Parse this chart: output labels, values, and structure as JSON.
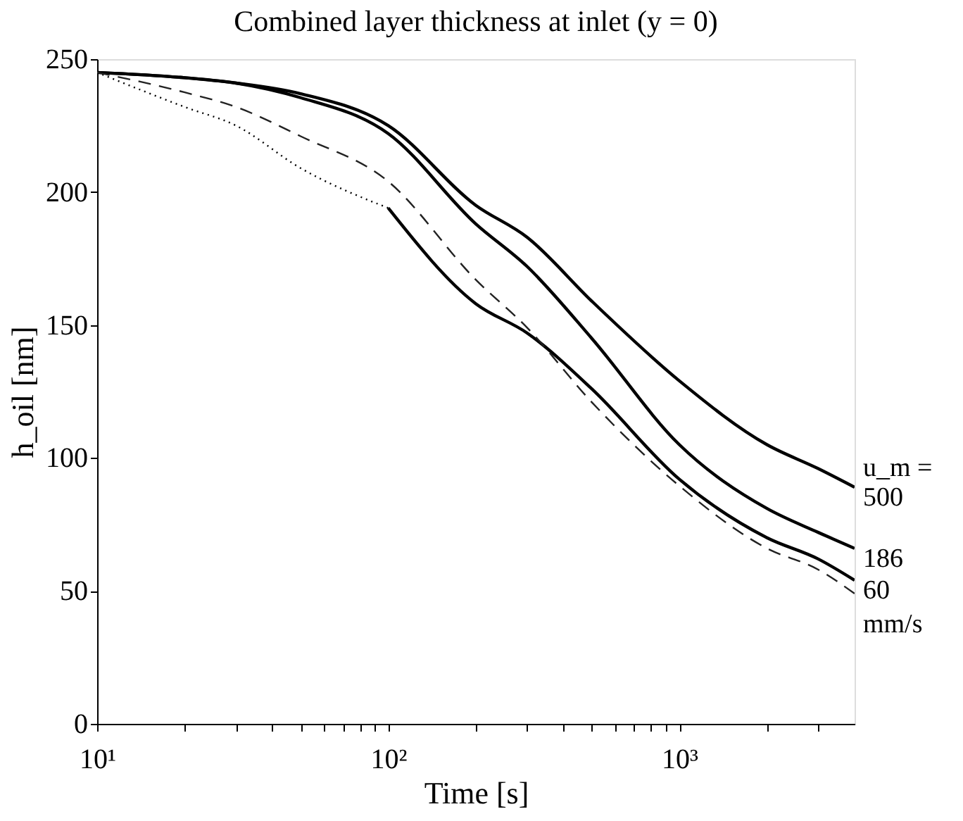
{
  "chart_data": {
    "type": "line",
    "title": "Combined layer thickness at inlet (y = 0)",
    "xlabel": "Time [s]",
    "ylabel": "h_oil [nm]",
    "log": "x",
    "grid": false,
    "marker": "none",
    "xlim": [
      10,
      4000
    ],
    "ylim": [
      0,
      250
    ],
    "xticks": [
      {
        "value": 10,
        "label": "10¹"
      },
      {
        "value": 20,
        "label": null
      },
      {
        "value": 30,
        "label": null
      },
      {
        "value": 40,
        "label": null
      },
      {
        "value": 50,
        "label": null
      },
      {
        "value": 60,
        "label": null
      },
      {
        "value": 70,
        "label": null
      },
      {
        "value": 80,
        "label": null
      },
      {
        "value": 90,
        "label": null
      },
      {
        "value": 100,
        "label": "10²"
      },
      {
        "value": 200,
        "label": null
      },
      {
        "value": 300,
        "label": null
      },
      {
        "value": 400,
        "label": null
      },
      {
        "value": 500,
        "label": null
      },
      {
        "value": 600,
        "label": null
      },
      {
        "value": 700,
        "label": null
      },
      {
        "value": 800,
        "label": null
      },
      {
        "value": 900,
        "label": null
      },
      {
        "value": 1000,
        "label": "10³"
      },
      {
        "value": 2000,
        "label": null
      },
      {
        "value": 3000,
        "label": null
      }
    ],
    "yticks": [
      0,
      50,
      100,
      150,
      200,
      250
    ],
    "annotations": [
      "u_m =",
      "mm/s"
    ],
    "series": [
      {
        "name": "500",
        "color": "#000000",
        "line_style": "solid",
        "x": [
          10,
          20,
          30,
          50,
          100,
          200,
          300,
          500,
          1000,
          2000,
          3000,
          4000
        ],
        "values": [
          245,
          243,
          241,
          237,
          225,
          195,
          183,
          159,
          129,
          105,
          96,
          89
        ]
      },
      {
        "name": "186",
        "color": "#000000",
        "line_style": "solid",
        "x": [
          10,
          20,
          30,
          50,
          100,
          200,
          300,
          500,
          1000,
          2000,
          3000,
          4000
        ],
        "values": [
          245,
          243,
          241,
          235.5,
          222,
          188,
          172,
          145,
          105,
          81,
          72,
          66
        ]
      },
      {
        "color": "#000000",
        "line_style": "dotted",
        "x": [
          10,
          20,
          30,
          50,
          100
        ],
        "values": [
          245,
          232,
          225,
          209,
          194
        ]
      },
      {
        "name": "60",
        "color": "#000000",
        "line_style": "solid",
        "x": [
          100,
          200,
          300,
          500,
          1000,
          2000,
          3000,
          4000
        ],
        "values": [
          194,
          158,
          147,
          126,
          92,
          70,
          62,
          54
        ]
      },
      {
        "color": "#222222",
        "line_style": "dashed",
        "x": [
          10,
          20,
          30,
          50,
          100,
          200,
          300,
          500,
          1000,
          2000,
          3000,
          4000
        ],
        "values": [
          245,
          237.5,
          232,
          221,
          204,
          167,
          149,
          121,
          89.5,
          66,
          58,
          49
        ]
      }
    ]
  }
}
